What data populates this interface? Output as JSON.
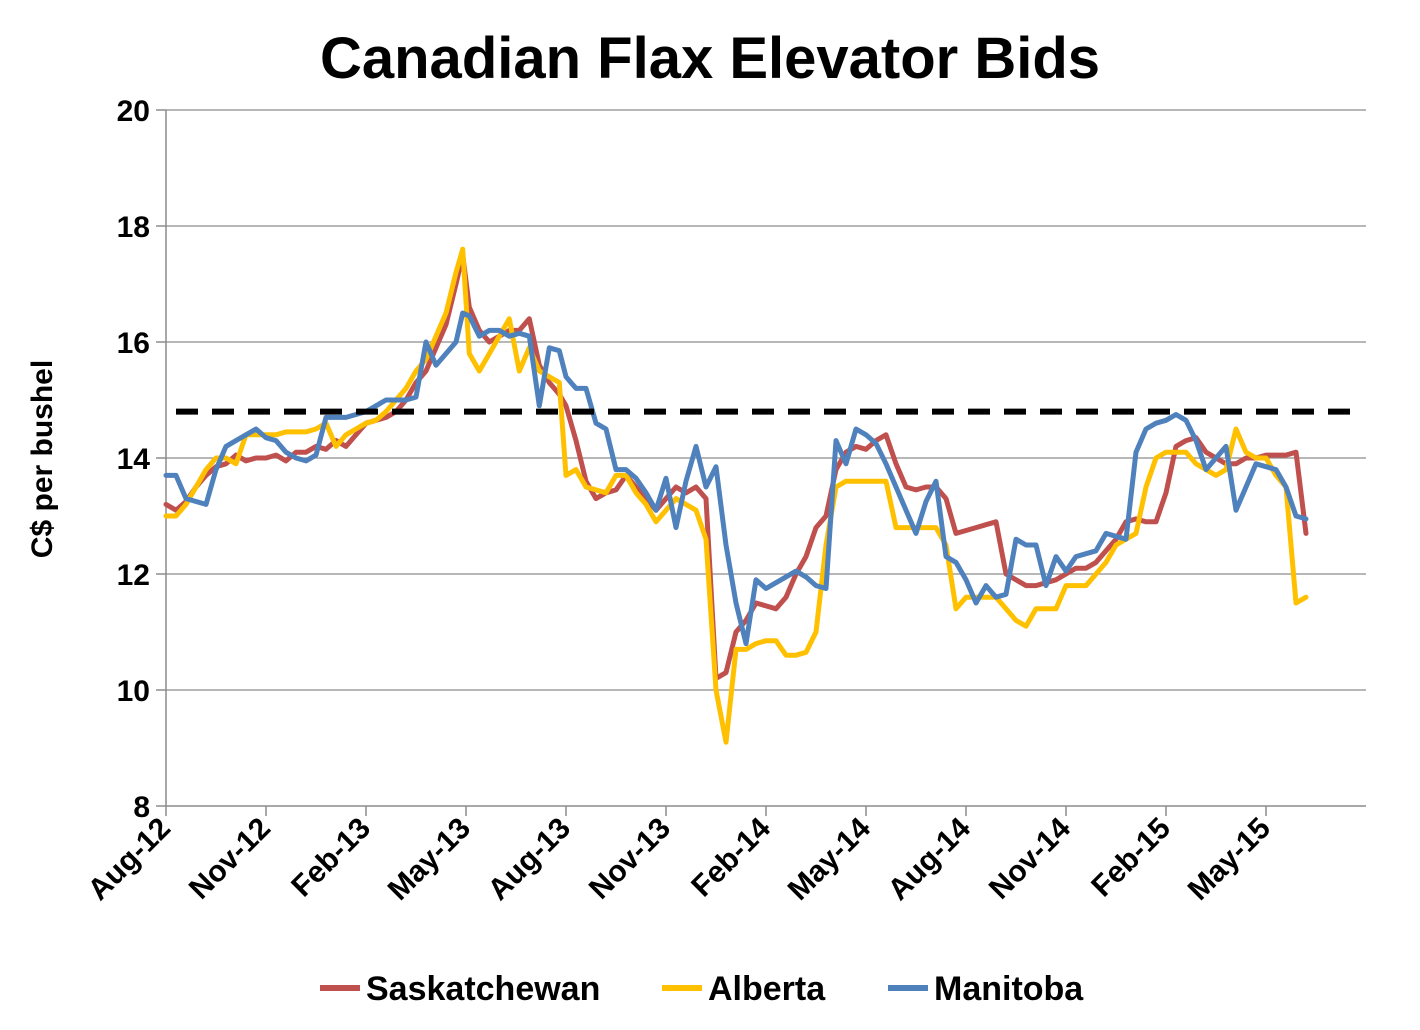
{
  "chart_data": {
    "type": "line",
    "title": "Canadian Flax Elevator Bids",
    "ylabel": "C$ per bushel",
    "xlabel": "",
    "ylim": [
      8,
      20
    ],
    "yticks": [
      "8",
      "10",
      "12",
      "14",
      "16",
      "18",
      "20"
    ],
    "xlim": [
      0,
      36
    ],
    "xticks": [
      {
        "label": "Aug-12",
        "x": 0
      },
      {
        "label": "Nov-12",
        "x": 3
      },
      {
        "label": "Feb-13",
        "x": 6
      },
      {
        "label": "May-13",
        "x": 9
      },
      {
        "label": "Aug-13",
        "x": 12
      },
      {
        "label": "Nov-13",
        "x": 15
      },
      {
        "label": "Feb-14",
        "x": 18
      },
      {
        "label": "May-14",
        "x": 21
      },
      {
        "label": "Aug-14",
        "x": 24
      },
      {
        "label": "Nov-14",
        "x": 27
      },
      {
        "label": "Feb-15",
        "x": 30
      },
      {
        "label": "May-15",
        "x": 33
      }
    ],
    "grid": true,
    "legend_position": "bottom",
    "reference_line": {
      "y": 14.8,
      "color": "#000000",
      "style": "dashed"
    },
    "series": [
      {
        "name": "Saskatchewan",
        "color": "#C0504D",
        "x": [
          0,
          0.3,
          0.6,
          0.9,
          1.2,
          1.5,
          1.8,
          2.1,
          2.4,
          2.7,
          3.0,
          3.3,
          3.6,
          3.9,
          4.2,
          4.5,
          4.8,
          5.1,
          5.4,
          5.7,
          6.0,
          6.3,
          6.6,
          6.9,
          7.2,
          7.5,
          7.8,
          8.1,
          8.4,
          8.7,
          8.9,
          9.1,
          9.4,
          9.7,
          10.0,
          10.3,
          10.6,
          10.9,
          11.2,
          11.5,
          11.8,
          12.0,
          12.3,
          12.6,
          12.9,
          13.2,
          13.5,
          13.8,
          14.1,
          14.4,
          14.7,
          15.0,
          15.3,
          15.6,
          15.9,
          16.2,
          16.5,
          16.8,
          17.1,
          17.4,
          17.7,
          18.0,
          18.3,
          18.6,
          18.9,
          19.2,
          19.5,
          19.8,
          20.1,
          20.4,
          20.7,
          21.0,
          21.3,
          21.6,
          21.9,
          22.2,
          22.5,
          22.8,
          23.1,
          23.4,
          23.7,
          24.0,
          24.3,
          24.6,
          24.9,
          25.2,
          25.5,
          25.8,
          26.1,
          26.4,
          26.7,
          27.0,
          27.3,
          27.6,
          27.9,
          28.2,
          28.5,
          28.8,
          29.1,
          29.4,
          29.7,
          30.0,
          30.3,
          30.6,
          30.9,
          31.2,
          31.5,
          31.8,
          32.1,
          32.4,
          32.7,
          33.0,
          33.3,
          33.6,
          33.9,
          34.2
        ],
        "values": [
          13.2,
          13.1,
          13.25,
          13.5,
          13.7,
          13.85,
          13.9,
          14.05,
          13.95,
          14.0,
          14.0,
          14.05,
          13.95,
          14.1,
          14.1,
          14.2,
          14.15,
          14.3,
          14.2,
          14.4,
          14.6,
          14.65,
          14.7,
          14.8,
          15.0,
          15.3,
          15.5,
          15.9,
          16.3,
          17.0,
          17.5,
          16.6,
          16.2,
          16.0,
          16.1,
          16.2,
          16.2,
          16.4,
          15.6,
          15.3,
          15.1,
          14.9,
          14.3,
          13.6,
          13.3,
          13.4,
          13.45,
          13.7,
          13.5,
          13.3,
          13.1,
          13.3,
          13.5,
          13.4,
          13.5,
          13.3,
          10.2,
          10.3,
          11.0,
          11.2,
          11.5,
          11.45,
          11.4,
          11.6,
          12.0,
          12.3,
          12.8,
          13.0,
          13.8,
          14.1,
          14.2,
          14.15,
          14.3,
          14.4,
          13.9,
          13.5,
          13.45,
          13.5,
          13.5,
          13.3,
          12.7,
          12.75,
          12.8,
          12.85,
          12.9,
          12.0,
          11.9,
          11.8,
          11.8,
          11.85,
          11.9,
          12.0,
          12.1,
          12.1,
          12.2,
          12.4,
          12.6,
          12.9,
          12.95,
          12.9,
          12.9,
          13.4,
          14.2,
          14.3,
          14.35,
          14.1,
          14.0,
          13.9,
          13.9,
          14.0,
          14.0,
          14.05,
          14.05,
          14.05,
          14.1,
          12.7
        ]
      },
      {
        "name": "Alberta",
        "color": "#FFC000",
        "x": [
          0,
          0.3,
          0.6,
          0.9,
          1.2,
          1.5,
          1.8,
          2.1,
          2.4,
          2.7,
          3.0,
          3.3,
          3.6,
          3.9,
          4.2,
          4.5,
          4.8,
          5.1,
          5.4,
          5.7,
          6.0,
          6.3,
          6.6,
          6.9,
          7.2,
          7.5,
          7.8,
          8.1,
          8.4,
          8.7,
          8.9,
          9.1,
          9.4,
          9.7,
          10.0,
          10.3,
          10.6,
          10.9,
          11.2,
          11.5,
          11.8,
          12.0,
          12.3,
          12.6,
          12.9,
          13.2,
          13.5,
          13.8,
          14.1,
          14.4,
          14.7,
          15.0,
          15.3,
          15.6,
          15.9,
          16.2,
          16.5,
          16.8,
          17.1,
          17.4,
          17.7,
          18.0,
          18.3,
          18.6,
          18.9,
          19.2,
          19.5,
          19.8,
          20.1,
          20.4,
          20.7,
          21.0,
          21.3,
          21.6,
          21.9,
          22.2,
          22.5,
          22.8,
          23.1,
          23.4,
          23.7,
          24.0,
          24.3,
          24.6,
          24.9,
          25.2,
          25.5,
          25.8,
          26.1,
          26.4,
          26.7,
          27.0,
          27.3,
          27.6,
          27.9,
          28.2,
          28.5,
          28.8,
          29.1,
          29.4,
          29.7,
          30.0,
          30.3,
          30.6,
          30.9,
          31.2,
          31.5,
          31.8,
          32.1,
          32.4,
          32.7,
          33.0,
          33.3,
          33.6,
          33.9,
          34.2
        ],
        "values": [
          13.0,
          13.0,
          13.2,
          13.5,
          13.8,
          14.0,
          14.0,
          13.9,
          14.4,
          14.4,
          14.4,
          14.4,
          14.45,
          14.45,
          14.45,
          14.5,
          14.6,
          14.2,
          14.4,
          14.5,
          14.6,
          14.65,
          14.8,
          15.0,
          15.2,
          15.5,
          15.7,
          16.1,
          16.5,
          17.2,
          17.6,
          15.8,
          15.5,
          15.8,
          16.1,
          16.4,
          15.5,
          15.9,
          15.5,
          15.4,
          15.3,
          13.7,
          13.8,
          13.5,
          13.45,
          13.4,
          13.7,
          13.7,
          13.4,
          13.2,
          12.9,
          13.1,
          13.3,
          13.2,
          13.1,
          12.6,
          10.0,
          9.1,
          10.7,
          10.7,
          10.8,
          10.85,
          10.85,
          10.6,
          10.6,
          10.65,
          11.0,
          12.5,
          13.5,
          13.6,
          13.6,
          13.6,
          13.6,
          13.6,
          12.8,
          12.8,
          12.8,
          12.8,
          12.8,
          12.5,
          11.4,
          11.6,
          11.6,
          11.6,
          11.6,
          11.4,
          11.2,
          11.1,
          11.4,
          11.4,
          11.4,
          11.8,
          11.8,
          11.8,
          12.0,
          12.2,
          12.5,
          12.6,
          12.7,
          13.5,
          14.0,
          14.1,
          14.1,
          14.1,
          13.9,
          13.8,
          13.7,
          13.8,
          14.5,
          14.1,
          14.0,
          14.0,
          13.7,
          13.5,
          11.5,
          11.6
        ]
      },
      {
        "name": "Manitoba",
        "color": "#4F81BD",
        "x": [
          0,
          0.3,
          0.6,
          0.9,
          1.2,
          1.5,
          1.8,
          2.1,
          2.4,
          2.7,
          3.0,
          3.3,
          3.6,
          3.9,
          4.2,
          4.5,
          4.8,
          5.1,
          5.4,
          5.7,
          6.0,
          6.3,
          6.6,
          6.9,
          7.2,
          7.5,
          7.8,
          8.1,
          8.4,
          8.7,
          8.9,
          9.1,
          9.4,
          9.7,
          10.0,
          10.3,
          10.6,
          10.9,
          11.2,
          11.5,
          11.8,
          12.0,
          12.3,
          12.6,
          12.9,
          13.2,
          13.5,
          13.8,
          14.1,
          14.4,
          14.7,
          15.0,
          15.3,
          15.6,
          15.9,
          16.2,
          16.5,
          16.8,
          17.1,
          17.4,
          17.7,
          18.0,
          18.3,
          18.6,
          18.9,
          19.2,
          19.5,
          19.8,
          20.1,
          20.4,
          20.7,
          21.0,
          21.3,
          21.6,
          21.9,
          22.2,
          22.5,
          22.8,
          23.1,
          23.4,
          23.7,
          24.0,
          24.3,
          24.6,
          24.9,
          25.2,
          25.5,
          25.8,
          26.1,
          26.4,
          26.7,
          27.0,
          27.3,
          27.6,
          27.9,
          28.2,
          28.5,
          28.8,
          29.1,
          29.4,
          29.7,
          30.0,
          30.3,
          30.6,
          30.9,
          31.2,
          31.5,
          31.8,
          32.1,
          32.4,
          32.7,
          33.0,
          33.3,
          33.6,
          33.9,
          34.2
        ],
        "values": [
          13.7,
          13.7,
          13.3,
          13.25,
          13.2,
          13.8,
          14.2,
          14.3,
          14.4,
          14.5,
          14.35,
          14.3,
          14.1,
          14.0,
          13.95,
          14.05,
          14.7,
          14.7,
          14.7,
          14.75,
          14.8,
          14.9,
          15.0,
          15.0,
          15.0,
          15.05,
          16.0,
          15.6,
          15.8,
          16.0,
          16.5,
          16.45,
          16.1,
          16.2,
          16.2,
          16.1,
          16.15,
          16.1,
          14.9,
          15.9,
          15.85,
          15.4,
          15.2,
          15.2,
          14.6,
          14.5,
          13.8,
          13.8,
          13.65,
          13.4,
          13.1,
          13.65,
          12.8,
          13.6,
          14.2,
          13.5,
          13.85,
          12.5,
          11.5,
          10.8,
          11.9,
          11.75,
          11.85,
          11.95,
          12.05,
          11.95,
          11.8,
          11.75,
          14.3,
          13.9,
          14.5,
          14.4,
          14.25,
          13.9,
          13.5,
          13.1,
          12.7,
          13.25,
          13.6,
          12.3,
          12.2,
          11.9,
          11.5,
          11.8,
          11.6,
          11.65,
          12.6,
          12.5,
          12.5,
          11.8,
          12.3,
          12.05,
          12.3,
          12.35,
          12.4,
          12.7,
          12.65,
          12.6,
          14.1,
          14.5,
          14.6,
          14.65,
          14.75,
          14.65,
          14.3,
          13.8,
          14.0,
          14.2,
          13.1,
          13.5,
          13.9,
          13.85,
          13.8,
          13.5,
          13.0,
          12.95
        ]
      }
    ]
  }
}
